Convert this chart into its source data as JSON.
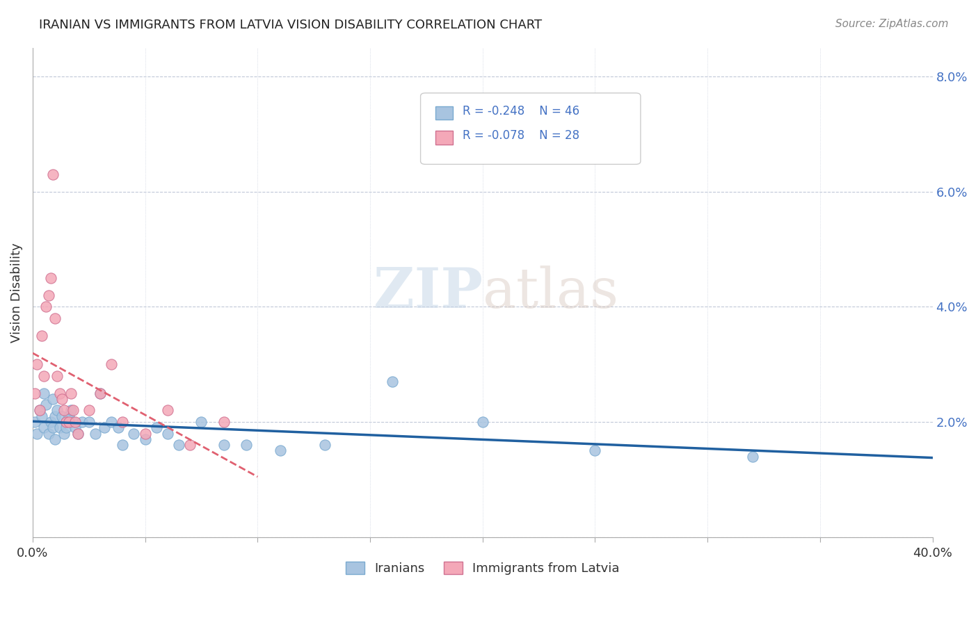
{
  "title": "IRANIAN VS IMMIGRANTS FROM LATVIA VISION DISABILITY CORRELATION CHART",
  "source": "Source: ZipAtlas.com",
  "ylabel": "Vision Disability",
  "xlim": [
    0.0,
    0.4
  ],
  "ylim": [
    0.0,
    0.085
  ],
  "ytick_vals": [
    0.0,
    0.02,
    0.04,
    0.06,
    0.08
  ],
  "ytick_labels": [
    "",
    "2.0%",
    "4.0%",
    "6.0%",
    "8.0%"
  ],
  "watermark_zip": "ZIP",
  "watermark_atlas": "atlas",
  "color_iranian": "#a8c4e0",
  "color_latvia": "#f4a8b8",
  "edge_iranian": "#7aaad0",
  "edge_latvia": "#d07090",
  "line_color_iranian": "#2060a0",
  "line_color_latvia": "#e06070",
  "iranians_x": [
    0.001,
    0.002,
    0.003,
    0.004,
    0.005,
    0.005,
    0.006,
    0.007,
    0.008,
    0.009,
    0.009,
    0.01,
    0.01,
    0.011,
    0.012,
    0.013,
    0.014,
    0.015,
    0.015,
    0.016,
    0.017,
    0.018,
    0.019,
    0.02,
    0.022,
    0.025,
    0.028,
    0.03,
    0.032,
    0.035,
    0.038,
    0.04,
    0.045,
    0.05,
    0.055,
    0.06,
    0.065,
    0.075,
    0.085,
    0.095,
    0.11,
    0.13,
    0.16,
    0.2,
    0.25,
    0.32
  ],
  "iranians_y": [
    0.02,
    0.018,
    0.022,
    0.021,
    0.025,
    0.019,
    0.023,
    0.018,
    0.02,
    0.019,
    0.024,
    0.017,
    0.021,
    0.022,
    0.019,
    0.021,
    0.018,
    0.02,
    0.019,
    0.021,
    0.022,
    0.02,
    0.019,
    0.018,
    0.02,
    0.02,
    0.018,
    0.025,
    0.019,
    0.02,
    0.019,
    0.016,
    0.018,
    0.017,
    0.019,
    0.018,
    0.016,
    0.02,
    0.016,
    0.016,
    0.015,
    0.016,
    0.027,
    0.02,
    0.015,
    0.014
  ],
  "latvia_x": [
    0.001,
    0.002,
    0.003,
    0.004,
    0.005,
    0.006,
    0.007,
    0.008,
    0.009,
    0.01,
    0.011,
    0.012,
    0.013,
    0.014,
    0.015,
    0.016,
    0.017,
    0.018,
    0.019,
    0.02,
    0.025,
    0.03,
    0.035,
    0.04,
    0.05,
    0.06,
    0.07,
    0.085
  ],
  "latvia_y": [
    0.025,
    0.03,
    0.022,
    0.035,
    0.028,
    0.04,
    0.042,
    0.045,
    0.063,
    0.038,
    0.028,
    0.025,
    0.024,
    0.022,
    0.02,
    0.02,
    0.025,
    0.022,
    0.02,
    0.018,
    0.022,
    0.025,
    0.03,
    0.02,
    0.018,
    0.022,
    0.016,
    0.02
  ],
  "legend_r1": "R = -0.248",
  "legend_n1": "N = 46",
  "legend_r2": "R = -0.078",
  "legend_n2": "N = 28",
  "legend_color": "#4472c4",
  "title_fontsize": 13,
  "tick_fontsize": 13,
  "source_fontsize": 11,
  "ylabel_fontsize": 13
}
